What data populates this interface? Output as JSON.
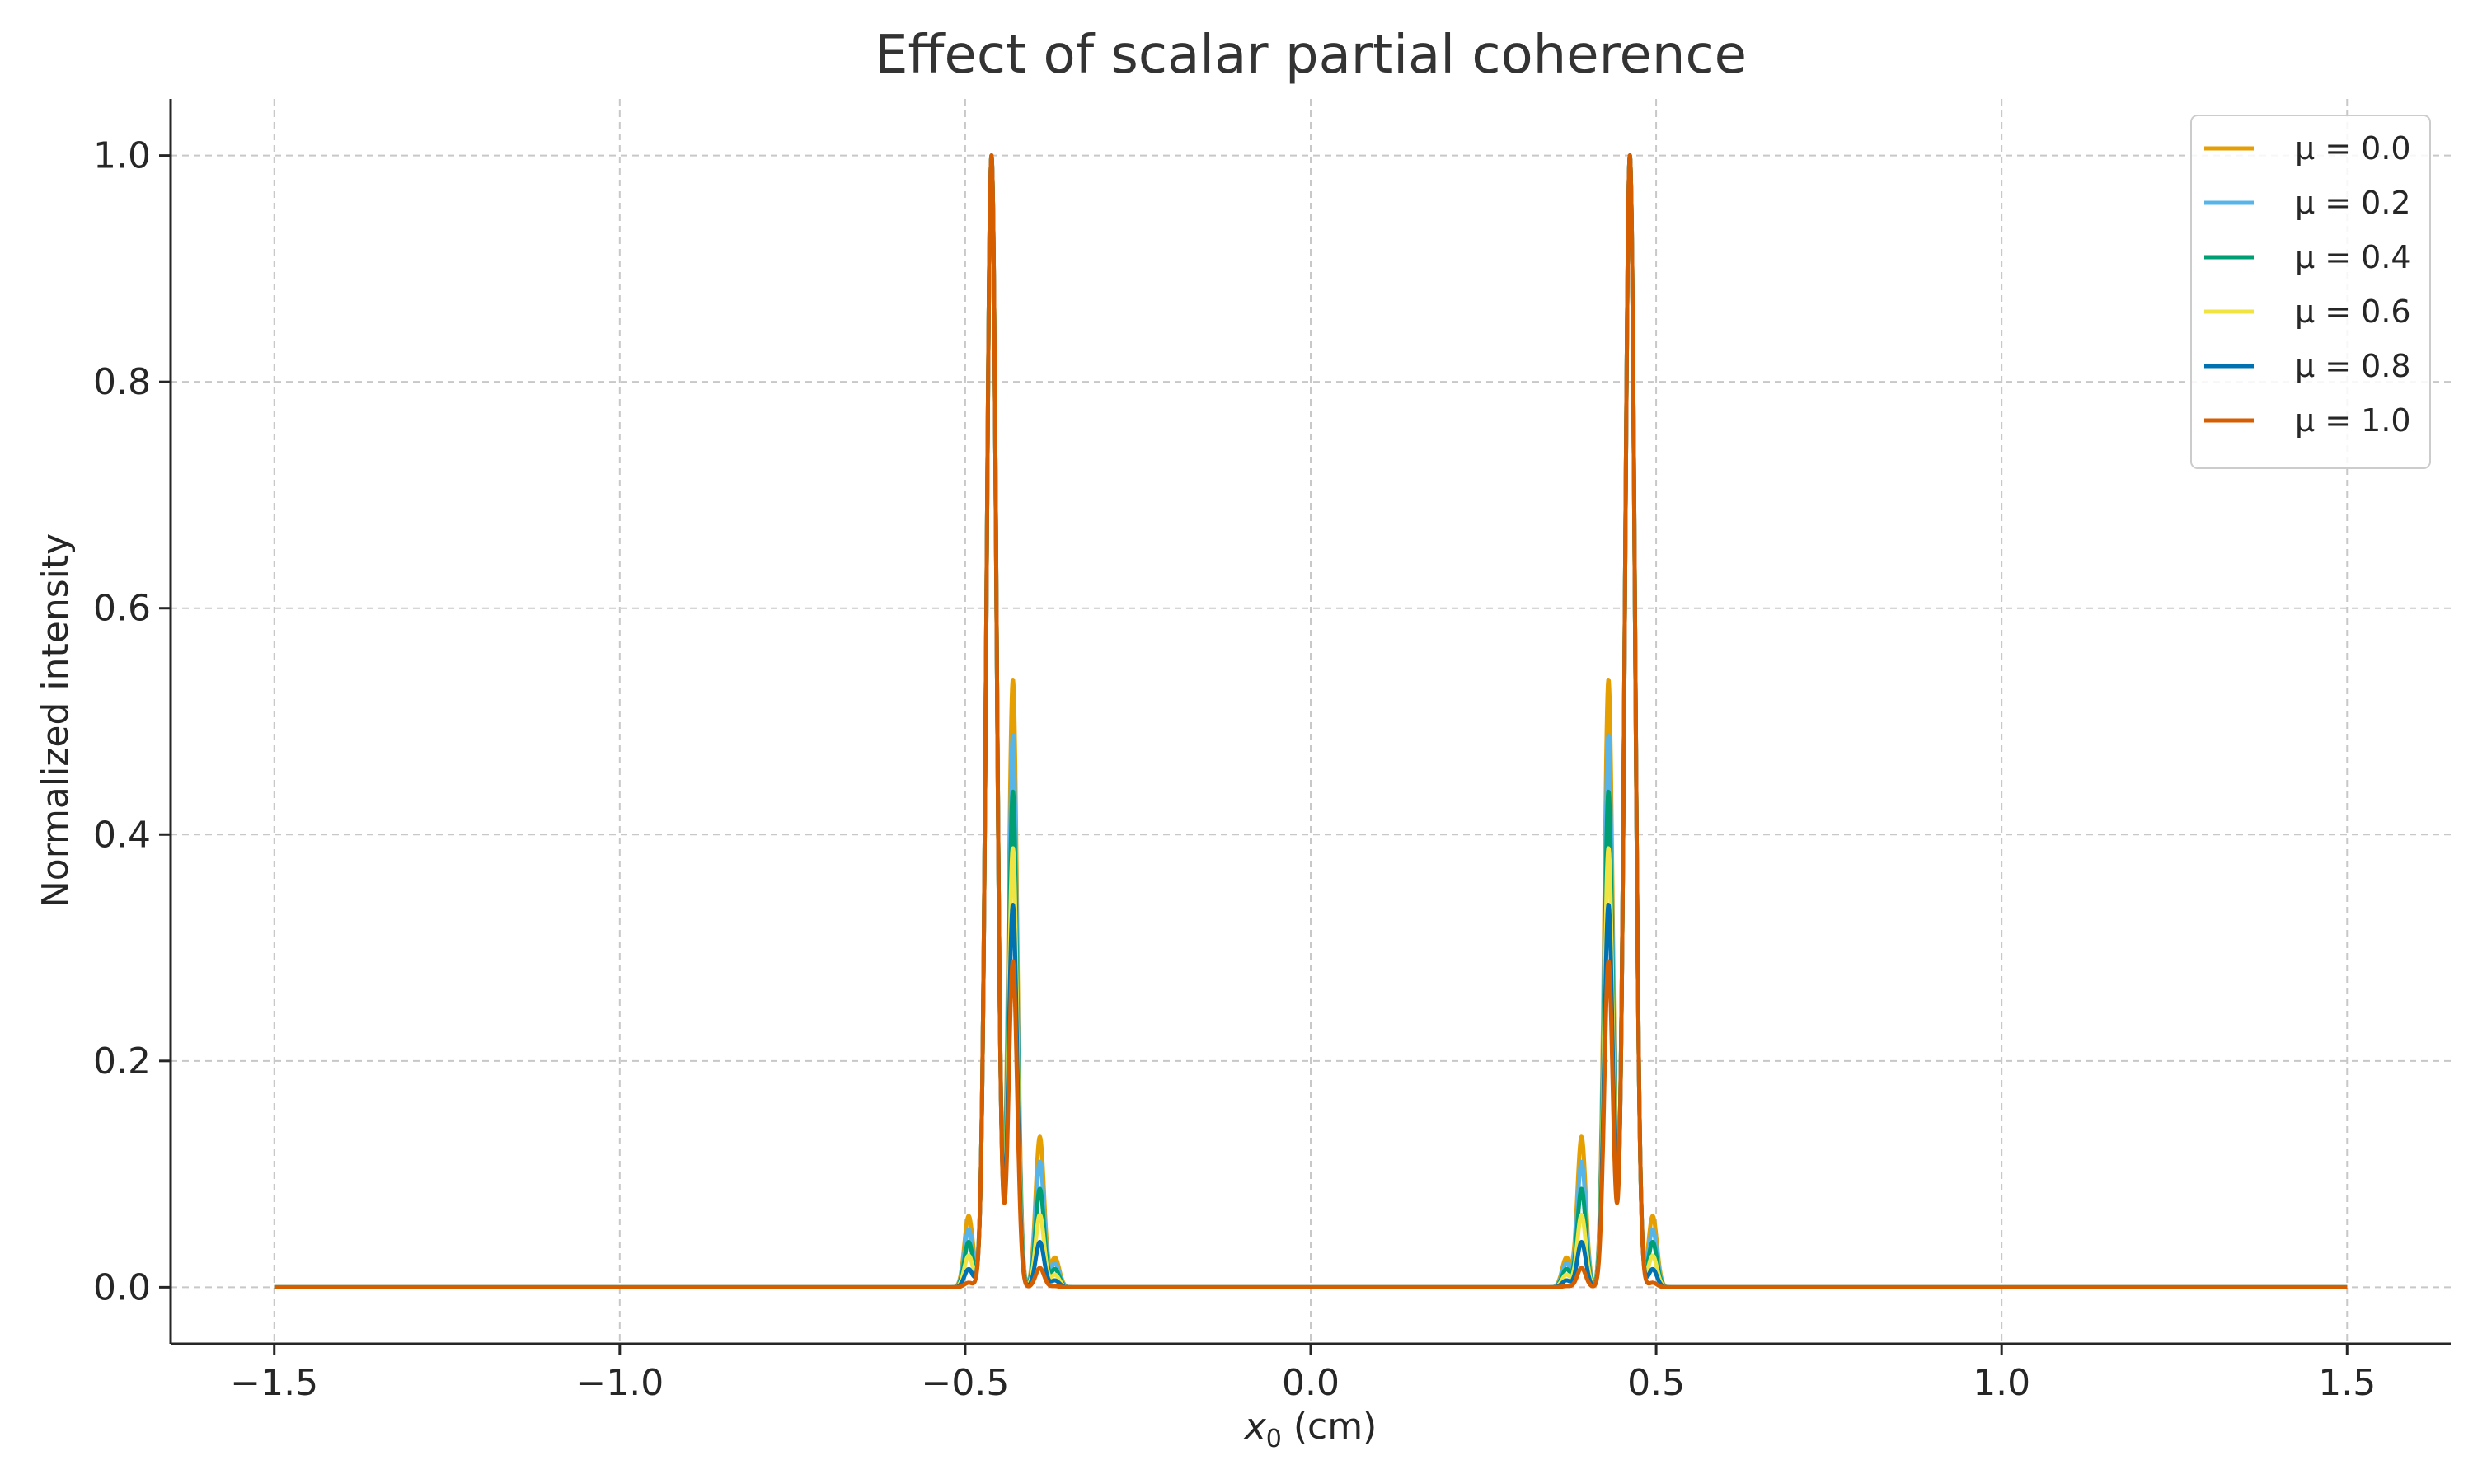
{
  "chart_data": {
    "type": "line",
    "title": "Effect of scalar partial coherence",
    "xlabel_var": "x",
    "xlabel_sub": "0",
    "xlabel_unit": " (cm)",
    "ylabel": "Normalized intensity",
    "xlim": [
      -1.65,
      1.65
    ],
    "ylim": [
      -0.05,
      1.05
    ],
    "grid": true,
    "legend_position": "top-right",
    "x_ticks": [
      -1.5,
      -1.0,
      -0.5,
      0.0,
      0.5,
      1.0,
      1.5
    ],
    "x_tick_labels": [
      "−1.5",
      "−1.0",
      "−0.5",
      "0.0",
      "0.5",
      "1.0",
      "1.5"
    ],
    "y_ticks": [
      0.0,
      0.2,
      0.4,
      0.6,
      0.8,
      1.0
    ],
    "y_tick_labels": [
      "0.0",
      "0.2",
      "0.4",
      "0.6",
      "0.8",
      "1.0"
    ],
    "x_range": [
      -1.5,
      1.5
    ],
    "main_peak_x": [
      -0.462,
      0.462
    ],
    "side_peak_x": [
      {
        "x": -0.431,
        "mirror": 0.431
      },
      {
        "x": -0.392,
        "mirror": 0.392
      },
      {
        "x": -0.37,
        "mirror": 0.37
      },
      {
        "x": -0.495,
        "mirror": 0.495
      }
    ],
    "series": [
      {
        "name": "μ = 0.0",
        "mu": 0.0,
        "color": "#E69F00",
        "main_peak": 1.0,
        "side_peaks": [
          0.537,
          0.133,
          0.026,
          0.063
        ]
      },
      {
        "name": "μ = 0.2",
        "mu": 0.2,
        "color": "#56B4E9",
        "main_peak": 1.0,
        "side_peaks": [
          0.488,
          0.111,
          0.021,
          0.051
        ]
      },
      {
        "name": "μ = 0.4",
        "mu": 0.4,
        "color": "#009E73",
        "main_peak": 1.0,
        "side_peaks": [
          0.438,
          0.087,
          0.016,
          0.04
        ]
      },
      {
        "name": "μ = 0.6",
        "mu": 0.6,
        "color": "#F0E442",
        "main_peak": 1.0,
        "side_peaks": [
          0.388,
          0.064,
          0.011,
          0.028
        ]
      },
      {
        "name": "μ = 0.8",
        "mu": 0.8,
        "color": "#0072B2",
        "main_peak": 1.0,
        "side_peaks": [
          0.338,
          0.04,
          0.006,
          0.016
        ]
      },
      {
        "name": "μ = 1.0",
        "mu": 1.0,
        "color": "#D55E00",
        "main_peak": 1.0,
        "side_peaks": [
          0.288,
          0.017,
          0.001,
          0.004
        ]
      }
    ]
  }
}
